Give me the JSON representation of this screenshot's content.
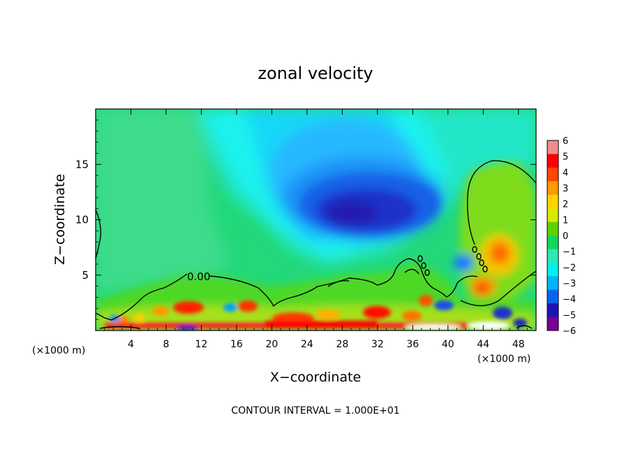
{
  "chart_data": {
    "type": "heatmap",
    "title": "zonal velocity",
    "xlabel": "X−coordinate",
    "ylabel": "Z−coordinate",
    "x_unit_left": "(×1000 m)",
    "x_unit_right": "(×1000 m)",
    "xlim": [
      0,
      50
    ],
    "ylim": [
      0,
      20
    ],
    "x_ticks": [
      4,
      8,
      12,
      16,
      20,
      24,
      28,
      32,
      36,
      40,
      44,
      48
    ],
    "x_tick_labels": [
      "4",
      "8",
      "12",
      "16",
      "20",
      "24",
      "28",
      "32",
      "36",
      "40",
      "44",
      "48"
    ],
    "y_ticks": [
      5,
      10,
      15
    ],
    "y_tick_labels": [
      "5",
      "10",
      "15"
    ],
    "colorbar": {
      "levels": [
        6,
        5,
        4,
        3,
        2,
        1,
        0,
        -1,
        -2,
        -3,
        -4,
        -5,
        -6
      ],
      "labels": [
        "6",
        "5",
        "4",
        "3",
        "2",
        "1",
        "0",
        "−1",
        "−2",
        "−3",
        "−4",
        "−5",
        "−6"
      ],
      "colors": [
        "#f08c8c",
        "#ff0000",
        "#ff4500",
        "#ff9a00",
        "#ffd400",
        "#d8ea00",
        "#5cd200",
        "#12d75a",
        "#2ce8b4",
        "#00f0f0",
        "#00b4ff",
        "#0a64f0",
        "#1e14b4",
        "#780096"
      ]
    },
    "contour_label": "0.00",
    "contour_value": 0,
    "features": [
      {
        "name": "core jet minimum",
        "x": 30,
        "z": 10.5,
        "u": -5.5
      },
      {
        "name": "upper westward flow",
        "x": 20,
        "z": 17,
        "u": -2
      },
      {
        "name": "right eastward dome",
        "x": 46,
        "z": 7,
        "u": 2
      },
      {
        "name": "surface eastward band",
        "x": 32,
        "z": 1,
        "u": 4
      }
    ]
  },
  "footer": "CONTOUR INTERVAL = 1.000E+01"
}
